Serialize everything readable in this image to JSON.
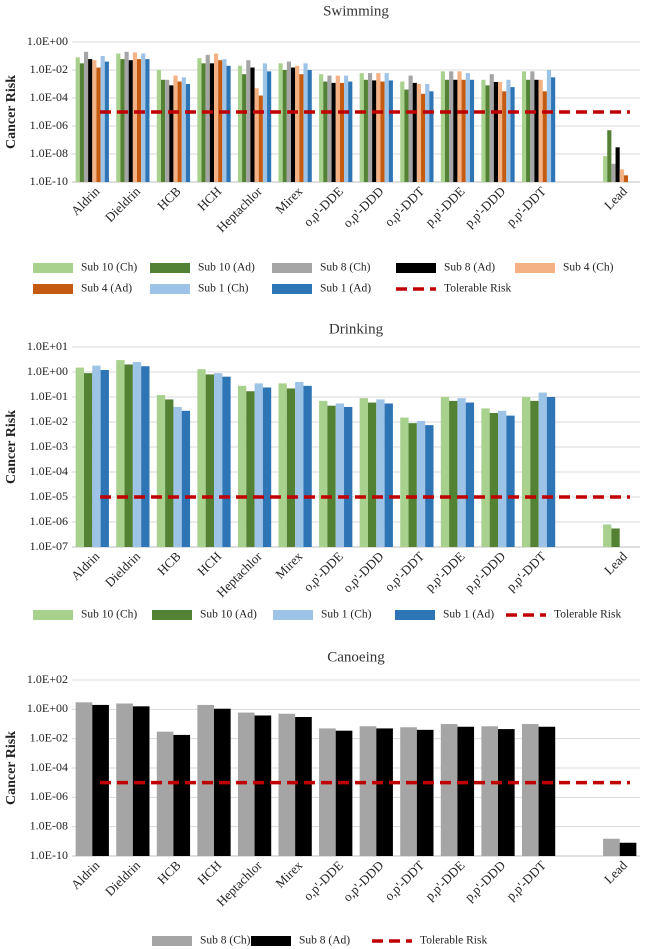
{
  "chart_data": [
    {
      "type": "bar",
      "title": "Swimming",
      "ylabel": "Cancer Risk",
      "xlabel": "",
      "yscale": "log",
      "ylim": [
        1e-10,
        1
      ],
      "yticks": [
        "1.0E+00",
        "1.0E-02",
        "1.0E-04",
        "1.0E-06",
        "1.0E-08",
        "1.0E-10"
      ],
      "categories": [
        "Aldrin",
        "Dieldrin",
        "HCB",
        "HCH",
        "Heptachlor",
        "Mirex",
        "o,p'-DDE",
        "o,p'-DDD",
        "o,p'-DDT",
        "p,p'-DDE",
        "p,p'-DDD",
        "p,p'-DDT",
        "",
        "Lead"
      ],
      "series": [
        {
          "name": "Sub 10 (Ch)",
          "color": "#a9d18e",
          "values": [
            0.08,
            0.15,
            0.01,
            0.07,
            0.02,
            0.03,
            0.005,
            0.006,
            0.0015,
            0.008,
            0.002,
            0.008,
            null,
            7e-09
          ]
        },
        {
          "name": "Sub 10 (Ad)",
          "color": "#548235",
          "values": [
            0.03,
            0.06,
            0.002,
            0.03,
            0.005,
            0.01,
            0.0015,
            0.002,
            0.0004,
            0.002,
            0.0008,
            0.002,
            null,
            5e-07
          ]
        },
        {
          "name": "Sub 8 (Ch)",
          "color": "#a5a5a5",
          "values": [
            0.2,
            0.2,
            0.002,
            0.12,
            0.05,
            0.04,
            0.004,
            0.006,
            0.004,
            0.008,
            0.005,
            0.008,
            null,
            2e-09
          ]
        },
        {
          "name": "Sub 8 (Ad)",
          "color": "#000000",
          "values": [
            0.06,
            0.05,
            0.0008,
            0.03,
            0.015,
            0.015,
            0.0012,
            0.0018,
            0.0012,
            0.002,
            0.0014,
            0.002,
            null,
            3e-08
          ]
        },
        {
          "name": "Sub 4 (Ch)",
          "color": "#f4b183",
          "values": [
            0.05,
            0.18,
            0.004,
            0.15,
            0.0005,
            0.02,
            0.004,
            0.006,
            0.001,
            0.008,
            0.0014,
            0.002,
            null,
            8e-10
          ]
        },
        {
          "name": "Sub 4 (Ad)",
          "color": "#c55a11",
          "values": [
            0.015,
            0.06,
            0.0015,
            0.05,
            0.00015,
            0.005,
            0.0012,
            0.0015,
            0.0002,
            0.002,
            0.0003,
            0.0003,
            null,
            3e-10
          ]
        },
        {
          "name": "Sub 1 (Ch)",
          "color": "#9dc3e6",
          "values": [
            0.1,
            0.15,
            0.003,
            0.06,
            0.03,
            0.03,
            0.004,
            0.006,
            0.001,
            0.006,
            0.002,
            0.01,
            null,
            null
          ]
        },
        {
          "name": "Sub 1 (Ad)",
          "color": "#2e75b6",
          "values": [
            0.04,
            0.06,
            0.001,
            0.02,
            0.008,
            0.01,
            0.0015,
            0.0018,
            0.0003,
            0.002,
            0.0006,
            0.003,
            null,
            null
          ]
        }
      ],
      "tolerable_risk": {
        "name": "Tolerable Risk",
        "color": "#c00000",
        "value": 1e-05
      }
    },
    {
      "type": "bar",
      "title": "Drinking",
      "ylabel": "Cancer Risk",
      "xlabel": "",
      "yscale": "log",
      "ylim": [
        1e-07,
        10
      ],
      "yticks": [
        "1.0E+01",
        "1.0E+00",
        "1.0E-01",
        "1.0E-02",
        "1.0E-03",
        "1.0E-04",
        "1.0E-05",
        "1.0E-06",
        "1.0E-07"
      ],
      "categories": [
        "Aldrin",
        "Dieldrin",
        "HCB",
        "HCH",
        "Heptachlor",
        "Mirex",
        "o,p'-DDE",
        "o,p'-DDD",
        "o,p'-DDT",
        "p,p'-DDE",
        "p,p'-DDD",
        "p,p'-DDT",
        "",
        "Lead"
      ],
      "series": [
        {
          "name": "Sub 10 (Ch)",
          "color": "#a9d18e",
          "values": [
            1.5,
            3.0,
            0.12,
            1.3,
            0.28,
            0.35,
            0.07,
            0.09,
            0.015,
            0.1,
            0.035,
            0.1,
            null,
            8e-07
          ]
        },
        {
          "name": "Sub 10 (Ad)",
          "color": "#548235",
          "values": [
            0.9,
            2.0,
            0.08,
            0.8,
            0.17,
            0.22,
            0.045,
            0.06,
            0.009,
            0.07,
            0.023,
            0.07,
            null,
            5.5e-07
          ]
        },
        {
          "name": "Sub 1 (Ch)",
          "color": "#9dc3e6",
          "values": [
            1.8,
            2.5,
            0.04,
            0.9,
            0.35,
            0.4,
            0.055,
            0.08,
            0.011,
            0.09,
            0.028,
            0.15,
            null,
            null
          ]
        },
        {
          "name": "Sub 1 (Ad)",
          "color": "#2e75b6",
          "values": [
            1.2,
            1.7,
            0.028,
            0.65,
            0.24,
            0.28,
            0.04,
            0.055,
            0.0075,
            0.06,
            0.018,
            0.1,
            null,
            null
          ]
        }
      ],
      "tolerable_risk": {
        "name": "Tolerable Risk",
        "color": "#c00000",
        "value": 1e-05
      }
    },
    {
      "type": "bar",
      "title": "Canoeing",
      "ylabel": "Cancer Risk",
      "xlabel": "",
      "yscale": "log",
      "ylim": [
        1e-10,
        100
      ],
      "yticks": [
        "1.0E+02",
        "1.0E+00",
        "1.0E-02",
        "1.0E-04",
        "1.0E-06",
        "1.0E-08",
        "1.0E-10"
      ],
      "categories": [
        "Aldrin",
        "Dieldrin",
        "HCB",
        "HCH",
        "Heptachlor",
        "Mirex",
        "o,p'-DDE",
        "o,p'-DDD",
        "o,p'-DDT",
        "p,p'-DDE",
        "p,p'-DDD",
        "p,p'-DDT",
        "",
        "Lead"
      ],
      "series": [
        {
          "name": "Sub 8 (Ch)",
          "color": "#a5a5a5",
          "values": [
            3.0,
            2.5,
            0.03,
            2.0,
            0.6,
            0.5,
            0.05,
            0.07,
            0.06,
            0.1,
            0.07,
            0.1,
            null,
            1.5e-09
          ]
        },
        {
          "name": "Sub 8 (Ad)",
          "color": "#000000",
          "values": [
            2.0,
            1.6,
            0.018,
            1.1,
            0.38,
            0.3,
            0.035,
            0.05,
            0.04,
            0.065,
            0.045,
            0.065,
            null,
            8e-10
          ]
        }
      ],
      "tolerable_risk": {
        "name": "Tolerable Risk",
        "color": "#c00000",
        "value": 1e-05
      }
    }
  ]
}
